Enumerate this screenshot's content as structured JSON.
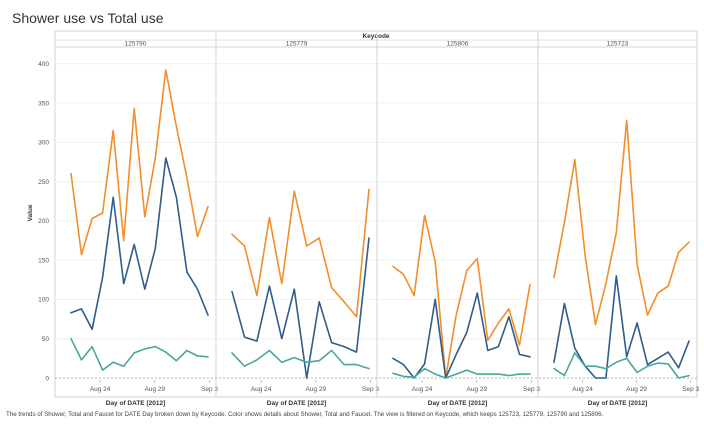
{
  "title": "Shower use vs Total use",
  "caption": "The trends of Shower, Total and Faucet for DATE Day broken down by Keycode.  Color shows details about Shower, Total and Faucet. The view is filtered on Keycode, which keeps 125723, 125779, 125790 and 125806.",
  "colors": {
    "Total": "#f28e2b",
    "Shower": "#2f5d8a",
    "Faucet": "#4aa69a"
  },
  "chart_data": {
    "type": "line",
    "column_header": "Keycode",
    "ylabel": "Value",
    "xlabel": "Day of DATE [2012]",
    "ylim": [
      0,
      420
    ],
    "yticks": [
      0,
      50,
      100,
      150,
      200,
      250,
      300,
      350,
      400
    ],
    "grid": true,
    "panels": [
      {
        "keycode": "125790",
        "xticks": [
          "Aug 24",
          "Aug 29",
          "Sep 3"
        ],
        "series": [
          {
            "name": "Total",
            "values": [
              260,
              157,
              203,
              210,
              315,
              175,
              343,
              205,
              280,
              392,
              320,
              255,
              180,
              218
            ]
          },
          {
            "name": "Shower",
            "values": [
              83,
              88,
              62,
              128,
              230,
              120,
              170,
              113,
              165,
              280,
              230,
              135,
              113,
              80
            ]
          },
          {
            "name": "Faucet",
            "values": [
              50,
              23,
              40,
              10,
              20,
              15,
              32,
              37,
              40,
              33,
              22,
              35,
              28,
              27
            ]
          }
        ]
      },
      {
        "keycode": "125779",
        "xticks": [
          "Aug 24",
          "Aug 29",
          "Sep 3"
        ],
        "series": [
          {
            "name": "Total",
            "values": [
              183,
              168,
              105,
              204,
              120,
              238,
              168,
              178,
              115,
              97,
              78,
              240
            ]
          },
          {
            "name": "Shower",
            "values": [
              110,
              52,
              47,
              117,
              50,
              113,
              0,
              97,
              45,
              40,
              33,
              178
            ]
          },
          {
            "name": "Faucet",
            "values": [
              32,
              15,
              23,
              35,
              20,
              26,
              20,
              22,
              35,
              17,
              17,
              12
            ]
          }
        ]
      },
      {
        "keycode": "125806",
        "xticks": [
          "Aug 24",
          "Aug 29",
          "Sep 3"
        ],
        "series": [
          {
            "name": "Total",
            "values": [
              142,
              132,
              105,
              207,
              148,
              0,
              80,
              137,
              152,
              48,
              70,
              88,
              42,
              119
            ]
          },
          {
            "name": "Shower",
            "values": [
              25,
              17,
              0,
              18,
              100,
              0,
              30,
              58,
              108,
              35,
              40,
              78,
              30,
              27
            ]
          },
          {
            "name": "Faucet",
            "values": [
              6,
              2,
              1,
              12,
              5,
              0,
              5,
              10,
              5,
              5,
              5,
              3,
              5,
              5
            ]
          }
        ]
      },
      {
        "keycode": "125723",
        "xticks": [
          "Aug 24",
          "Aug 29",
          "Sep 3"
        ],
        "series": [
          {
            "name": "Total",
            "values": [
              128,
              198,
              278,
              155,
              68,
              120,
              185,
              328,
              145,
              80,
              108,
              117,
              160,
              173
            ]
          },
          {
            "name": "Shower",
            "values": [
              20,
              95,
              38,
              15,
              0,
              0,
              130,
              27,
              70,
              17,
              25,
              33,
              13,
              47
            ]
          },
          {
            "name": "Faucet",
            "values": [
              12,
              3,
              32,
              15,
              15,
              12,
              20,
              25,
              7,
              15,
              19,
              18,
              0,
              3
            ]
          }
        ]
      }
    ]
  }
}
